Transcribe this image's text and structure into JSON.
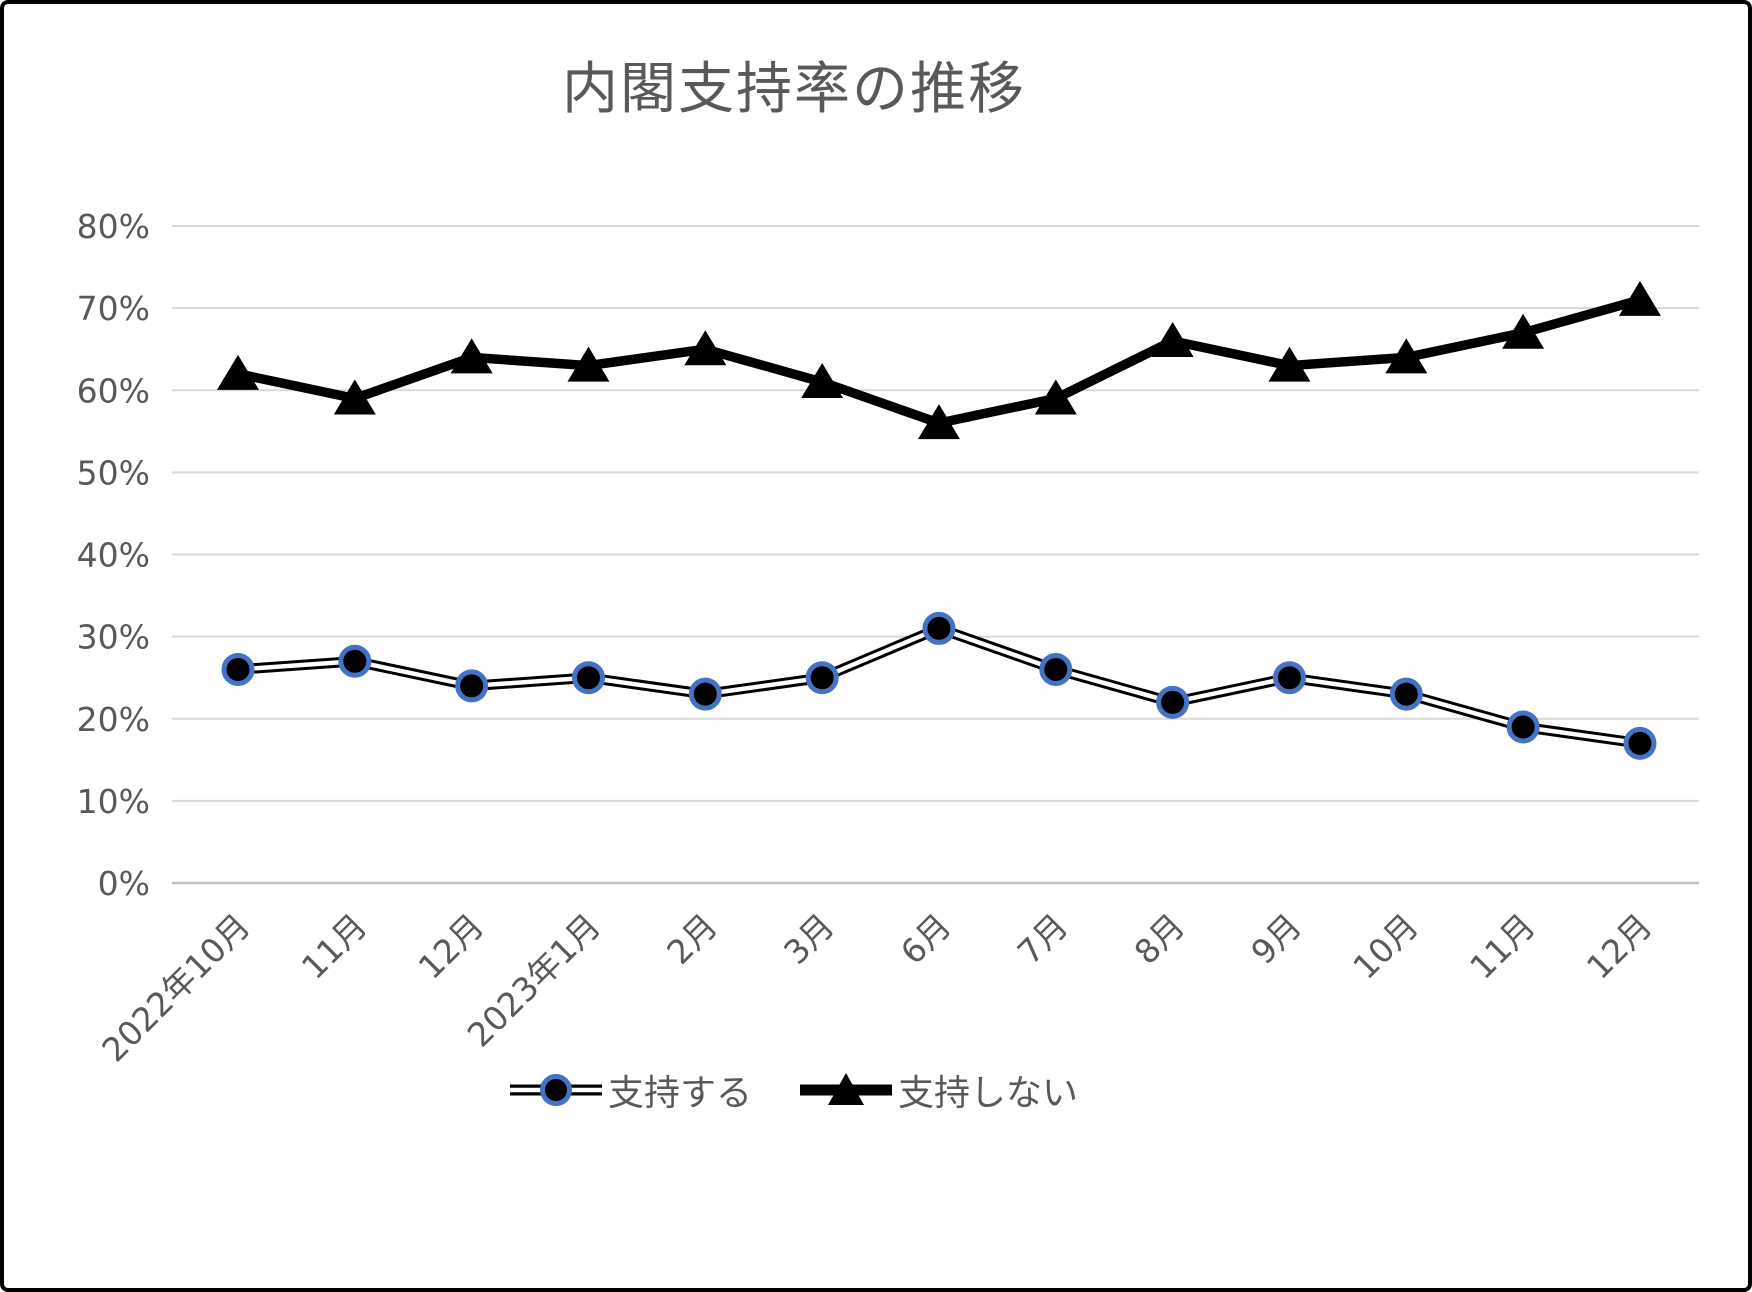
{
  "window": {
    "background": "#ffffff",
    "border_color": "#000000"
  },
  "chart_data": {
    "type": "line",
    "title": "内閣支持率の推移",
    "categories": [
      "2022年10月",
      "11月",
      "12月",
      "2023年1月",
      "2月",
      "3月",
      "6月",
      "7月",
      "8月",
      "9月",
      "10月",
      "11月",
      "12月"
    ],
    "series": [
      {
        "name": "支持する",
        "marker": "circle",
        "line_style": "double",
        "line_color": "#000000",
        "inner_line_color": "#ffffff",
        "marker_fill": "#000000",
        "marker_stroke": "#4472c4",
        "values": [
          26,
          27,
          24,
          25,
          23,
          25,
          31,
          26,
          22,
          25,
          23,
          19,
          17
        ]
      },
      {
        "name": "支持しない",
        "marker": "triangle",
        "line_style": "solid",
        "line_color": "#000000",
        "marker_fill": "#000000",
        "values": [
          62,
          59,
          64,
          63,
          65,
          61,
          56,
          59,
          66,
          63,
          64,
          67,
          71
        ]
      }
    ],
    "ylim": [
      0,
      80
    ],
    "y_tick_step": 10,
    "y_tick_labels": [
      "0%",
      "10%",
      "20%",
      "30%",
      "40%",
      "50%",
      "60%",
      "70%",
      "80%"
    ],
    "xlabel": "",
    "ylabel": "",
    "grid": true,
    "legend_position": "bottom",
    "colors": {
      "gridline": "#d9d9d9",
      "baseline": "#bfbfbf",
      "axis_text": "#595959",
      "title_text": "#595959"
    }
  }
}
